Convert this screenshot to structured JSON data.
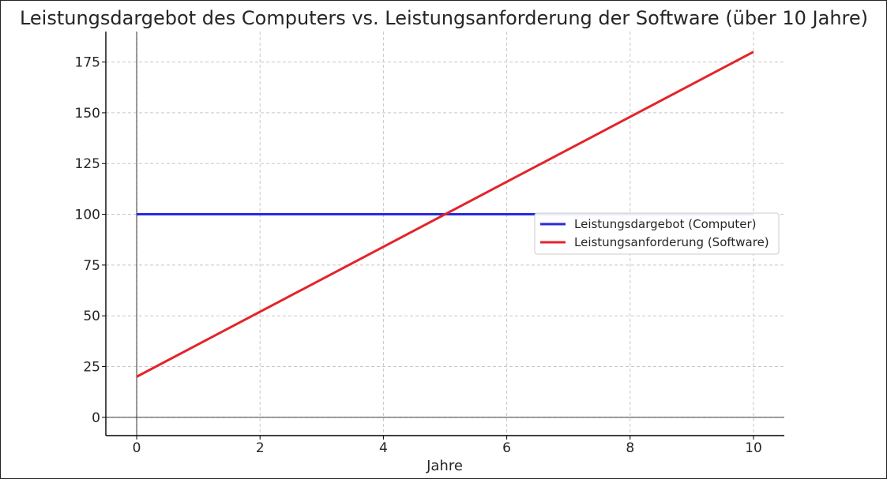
{
  "chart_data": {
    "type": "line",
    "title": "Leistungsdargebot des Computers vs. Leistungsanforderung der Software (über 10 Jahre)",
    "xlabel": "Jahre",
    "ylabel": "",
    "xlim": [
      -0.5,
      10.5
    ],
    "ylim": [
      -9,
      190
    ],
    "xticks": [
      0,
      2,
      4,
      6,
      8,
      10
    ],
    "yticks": [
      0,
      25,
      50,
      75,
      100,
      125,
      150,
      175
    ],
    "grid": true,
    "legend_position": "center-right",
    "series": [
      {
        "name": "Leistungsdargebot (Computer)",
        "color": "#2929e0",
        "x": [
          0,
          10
        ],
        "y": [
          100,
          100
        ]
      },
      {
        "name": "Leistungsanforderung (Software)",
        "color": "#e3242b",
        "x": [
          0,
          10
        ],
        "y": [
          20,
          180
        ]
      }
    ]
  }
}
